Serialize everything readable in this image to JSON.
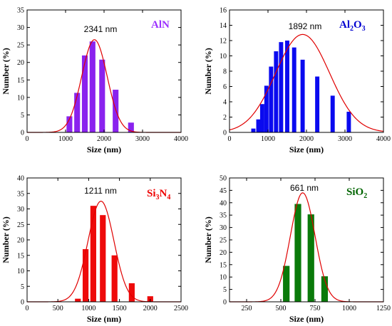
{
  "chart_data": [
    {
      "type": "bar",
      "material_label": [
        {
          "text": "AlN"
        }
      ],
      "material_color": "#9b30ff",
      "bar_color": "#8a22ee",
      "fit_color": "#e00000",
      "annotation": "2341 nm",
      "xlabel": "Size (nm)",
      "ylabel": "Number (%)",
      "xlim": [
        0,
        4000
      ],
      "ylim": [
        0,
        35
      ],
      "xticks": [
        0,
        1000,
        2000,
        3000,
        4000
      ],
      "yticks": [
        0,
        5,
        10,
        15,
        20,
        25,
        30,
        35
      ],
      "bar_width": 150,
      "x": [
        1100,
        1300,
        1500,
        1700,
        1950,
        2300,
        2700
      ],
      "values": [
        4.6,
        11.3,
        22.0,
        26.0,
        20.8,
        12.2,
        2.8
      ],
      "fit": {
        "type": "gaussian",
        "center": 1750,
        "sigma": 330,
        "peak": 26.5
      }
    },
    {
      "type": "bar",
      "material_label": [
        {
          "text": "Al"
        },
        {
          "text": "2",
          "sub": true
        },
        {
          "text": "O"
        },
        {
          "text": "3",
          "sub": true
        }
      ],
      "material_color": "#0000d0",
      "bar_color": "#0a0aef",
      "fit_color": "#e00000",
      "annotation": "1892 nm",
      "xlabel": "Size (nm)",
      "ylabel": "Number (%)",
      "xlim": [
        0,
        4000
      ],
      "ylim": [
        0,
        16
      ],
      "xticks": [
        0,
        1000,
        2000,
        3000,
        4000
      ],
      "yticks": [
        0,
        2,
        4,
        6,
        8,
        10,
        12,
        14,
        16
      ],
      "bar_width": 110,
      "x": [
        620,
        750,
        850,
        960,
        1080,
        1210,
        1340,
        1500,
        1680,
        1900,
        2280,
        2680,
        3100,
        3600
      ],
      "values": [
        0.5,
        1.7,
        3.7,
        6.1,
        8.6,
        10.6,
        11.8,
        12.0,
        11.1,
        9.5,
        7.3,
        4.8,
        2.7,
        0
      ],
      "fit": {
        "type": "gaussian",
        "center": 1900,
        "sigma": 700,
        "peak": 12.8
      }
    },
    {
      "type": "bar",
      "material_label": [
        {
          "text": "Si"
        },
        {
          "text": "3",
          "sub": true
        },
        {
          "text": "N"
        },
        {
          "text": "4",
          "sub": true
        }
      ],
      "material_color": "#ee0000",
      "bar_color": "#ee0a0a",
      "fit_color": "#e00000",
      "annotation": "1211 nm",
      "xlabel": "Size (nm)",
      "ylabel": "Number (%)",
      "xlim": [
        0,
        2500
      ],
      "ylim": [
        0,
        40
      ],
      "xticks": [
        0,
        500,
        1000,
        1500,
        2000,
        2500
      ],
      "yticks": [
        0,
        5,
        10,
        15,
        20,
        25,
        30,
        35,
        40
      ],
      "bar_width": 95,
      "x": [
        825,
        950,
        1075,
        1230,
        1420,
        1700,
        2000
      ],
      "values": [
        1.0,
        17.0,
        31.0,
        28.0,
        15.0,
        6.0,
        1.8
      ],
      "fit": {
        "type": "gaussian",
        "center": 1200,
        "sigma": 210,
        "peak": 32.5
      }
    },
    {
      "type": "bar",
      "material_label": [
        {
          "text": "SiO"
        },
        {
          "text": "2",
          "sub": true
        }
      ],
      "material_color": "#006400",
      "bar_color": "#0a7a0a",
      "fit_color": "#e00000",
      "annotation": "661 nm",
      "xlabel": "Size (nm)",
      "ylabel": "Number (%)",
      "xlim": [
        125,
        1250
      ],
      "ylim": [
        0,
        50
      ],
      "xticks": [
        250,
        500,
        750,
        1000,
        1250
      ],
      "yticks": [
        0,
        5,
        10,
        15,
        20,
        25,
        30,
        35,
        40,
        45,
        50
      ],
      "bar_width": 48,
      "x": [
        540,
        625,
        720,
        820
      ],
      "values": [
        14.5,
        39.5,
        35.3,
        10.3
      ],
      "fit": {
        "type": "gaussian",
        "center": 660,
        "sigma": 90,
        "peak": 44
      }
    }
  ]
}
